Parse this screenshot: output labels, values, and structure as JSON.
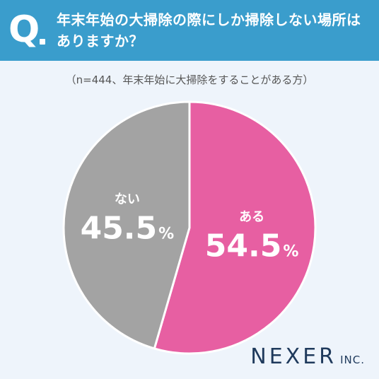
{
  "header": {
    "q_mark": "Q",
    "question_line1": "年末年始の大掃除の際にしか掃除しない場所は",
    "question_line2": "ありますか？"
  },
  "note": "（n=444、年末年始に大掃除をすることがある方）",
  "chart_data": {
    "type": "pie",
    "slices": [
      {
        "label": "ある",
        "value": 54.5,
        "display": "54.5",
        "color": "#e75fa2"
      },
      {
        "label": "ない",
        "value": 45.5,
        "display": "45.5",
        "color": "#a3a3a3"
      }
    ],
    "unit": "%"
  },
  "brand": {
    "name": "NEXER",
    "suffix": "INC."
  }
}
